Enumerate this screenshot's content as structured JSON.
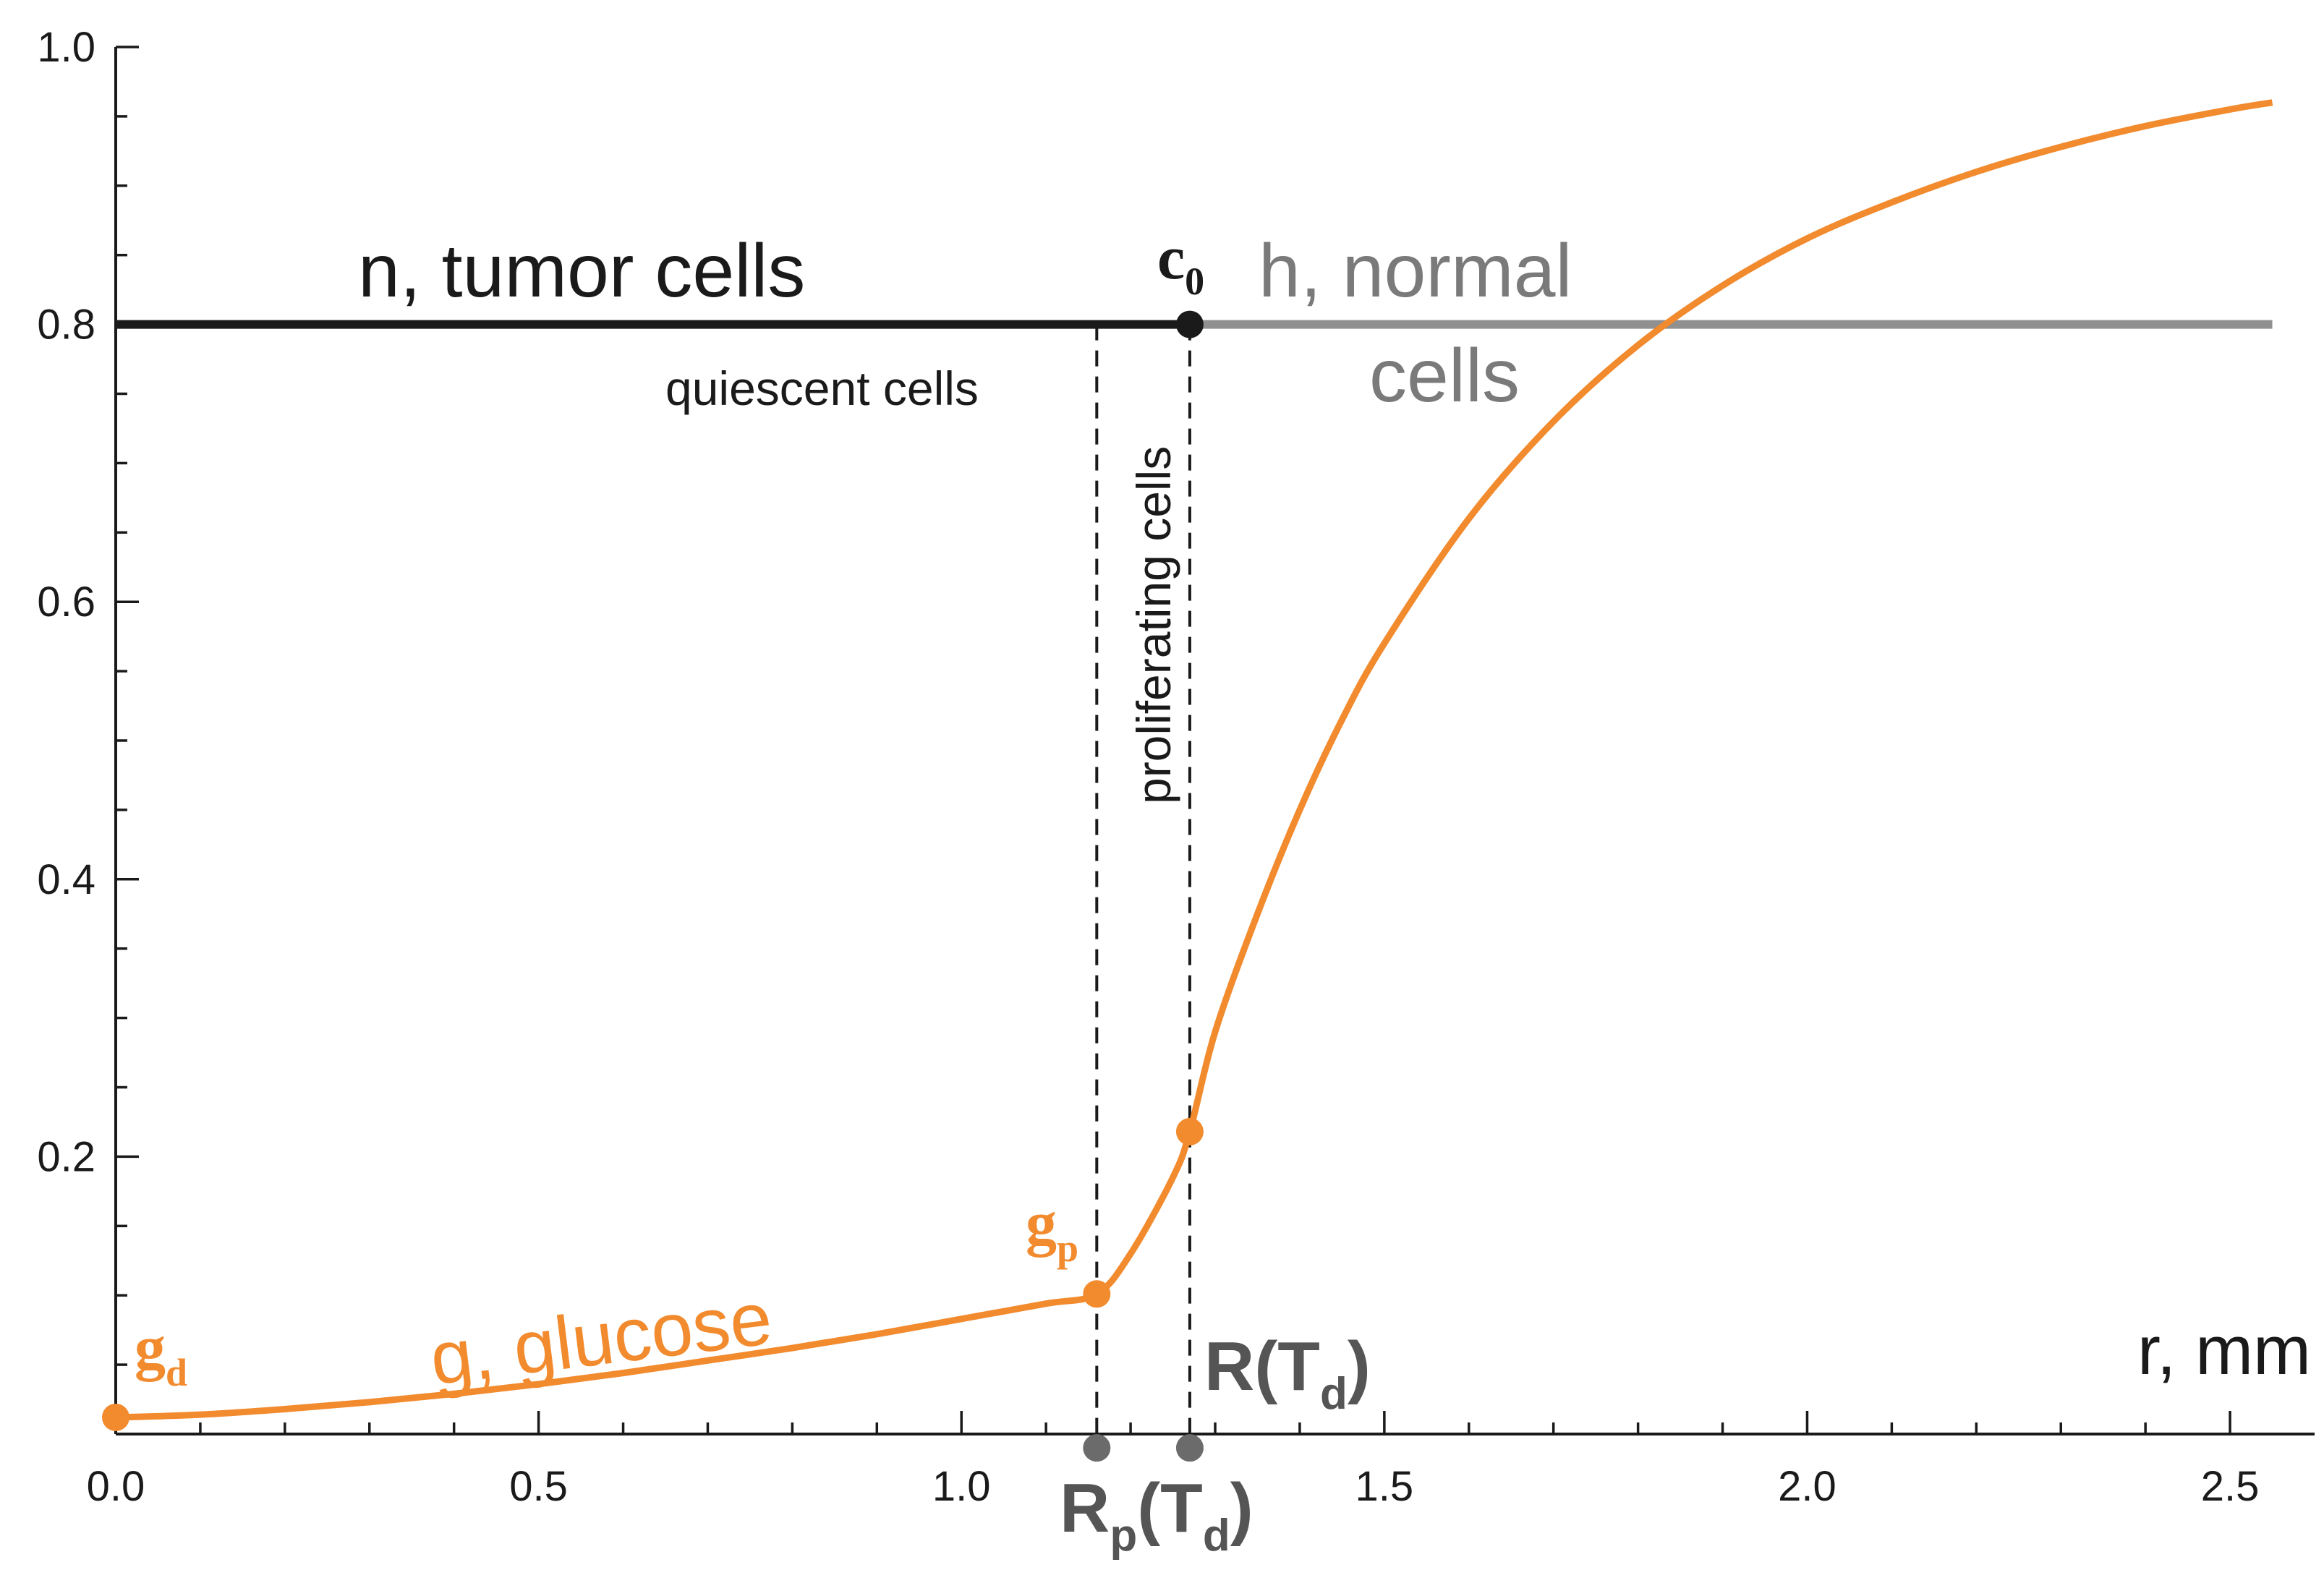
{
  "chart_data": {
    "type": "line",
    "title": "",
    "xlabel": "r, mm",
    "ylabel": "",
    "xlim": [
      0,
      2.6
    ],
    "ylim": [
      0,
      1.0
    ],
    "x_ticks": [
      0.0,
      0.5,
      1.0,
      1.5,
      2.0,
      2.5
    ],
    "x_tick_labels": [
      "0.0",
      "0.5",
      "1.0",
      "1.5",
      "2.0",
      "2.5"
    ],
    "y_ticks": [
      0.2,
      0.4,
      0.6,
      0.8,
      1.0
    ],
    "y_tick_labels": [
      "0.2",
      "0.4",
      "0.6",
      "0.8",
      "1.0"
    ],
    "x_minor_step": 0.1,
    "y_minor_step": 0.05,
    "colors": {
      "tumor": "#1a1a1a",
      "normal": "#909090",
      "glucose": "#f28a2e",
      "marker": "#6b6b6b",
      "axis": "#1a1a1a"
    },
    "series": [
      {
        "name": "n, tumor cells",
        "color": "#1a1a1a",
        "x": [
          0.0,
          1.27
        ],
        "y": [
          0.8,
          0.8
        ]
      },
      {
        "name": "h, normal cells",
        "color": "#909090",
        "x": [
          1.27,
          2.55
        ],
        "y": [
          0.8,
          0.8
        ]
      },
      {
        "name": "g, glucose",
        "color": "#f28a2e",
        "x": [
          0.0,
          0.1,
          0.2,
          0.3,
          0.4,
          0.5,
          0.6,
          0.7,
          0.8,
          0.9,
          1.0,
          1.1,
          1.16,
          1.2,
          1.25,
          1.27,
          1.3,
          1.35,
          1.4,
          1.45,
          1.5,
          1.6,
          1.7,
          1.8,
          1.9,
          2.0,
          2.1,
          2.2,
          2.3,
          2.4,
          2.5,
          2.55
        ],
        "y": [
          0.012,
          0.014,
          0.018,
          0.023,
          0.029,
          0.036,
          0.044,
          0.053,
          0.062,
          0.072,
          0.083,
          0.094,
          0.101,
          0.13,
          0.185,
          0.218,
          0.29,
          0.375,
          0.45,
          0.515,
          0.57,
          0.66,
          0.73,
          0.785,
          0.828,
          0.862,
          0.888,
          0.91,
          0.928,
          0.943,
          0.955,
          0.96
        ]
      }
    ],
    "vlines": [
      {
        "name": "R_p(T_d)",
        "x": 1.16
      },
      {
        "name": "R(T_d)",
        "x": 1.27
      }
    ],
    "points": [
      {
        "name": "c0",
        "x": 1.27,
        "y": 0.8,
        "color": "#1a1a1a"
      },
      {
        "name": "g_d",
        "x": 0.0,
        "y": 0.012,
        "color": "#f28a2e"
      },
      {
        "name": "g_p",
        "x": 1.16,
        "y": 0.101,
        "color": "#f28a2e"
      },
      {
        "name": "glucose-at-R",
        "x": 1.27,
        "y": 0.218,
        "color": "#f28a2e"
      },
      {
        "name": "Rp-axis-marker",
        "x": 1.16,
        "y": -0.01,
        "color": "#6b6b6b"
      },
      {
        "name": "R-axis-marker",
        "x": 1.27,
        "y": -0.01,
        "color": "#6b6b6b"
      }
    ],
    "annotations": {
      "tumor_label": "n, tumor cells",
      "normal_label_line1": "h, normal",
      "normal_label_line2": "cells",
      "quiescent_label": "quiescent cells",
      "proliferating_label": "proliferating cells",
      "glucose_label": "g, glucose",
      "c0": {
        "main": "c",
        "sub": "0"
      },
      "gd": {
        "main": "g",
        "sub": "d"
      },
      "gp": {
        "main": "g",
        "sub": "p"
      },
      "R_label": {
        "a": "R(T",
        "sub": "d",
        "b": ")"
      },
      "Rp_label": {
        "a": "R",
        "sub1": "p",
        "b": "(T",
        "sub2": "d",
        "c": ")"
      },
      "x_axis_title": "r, mm"
    }
  }
}
